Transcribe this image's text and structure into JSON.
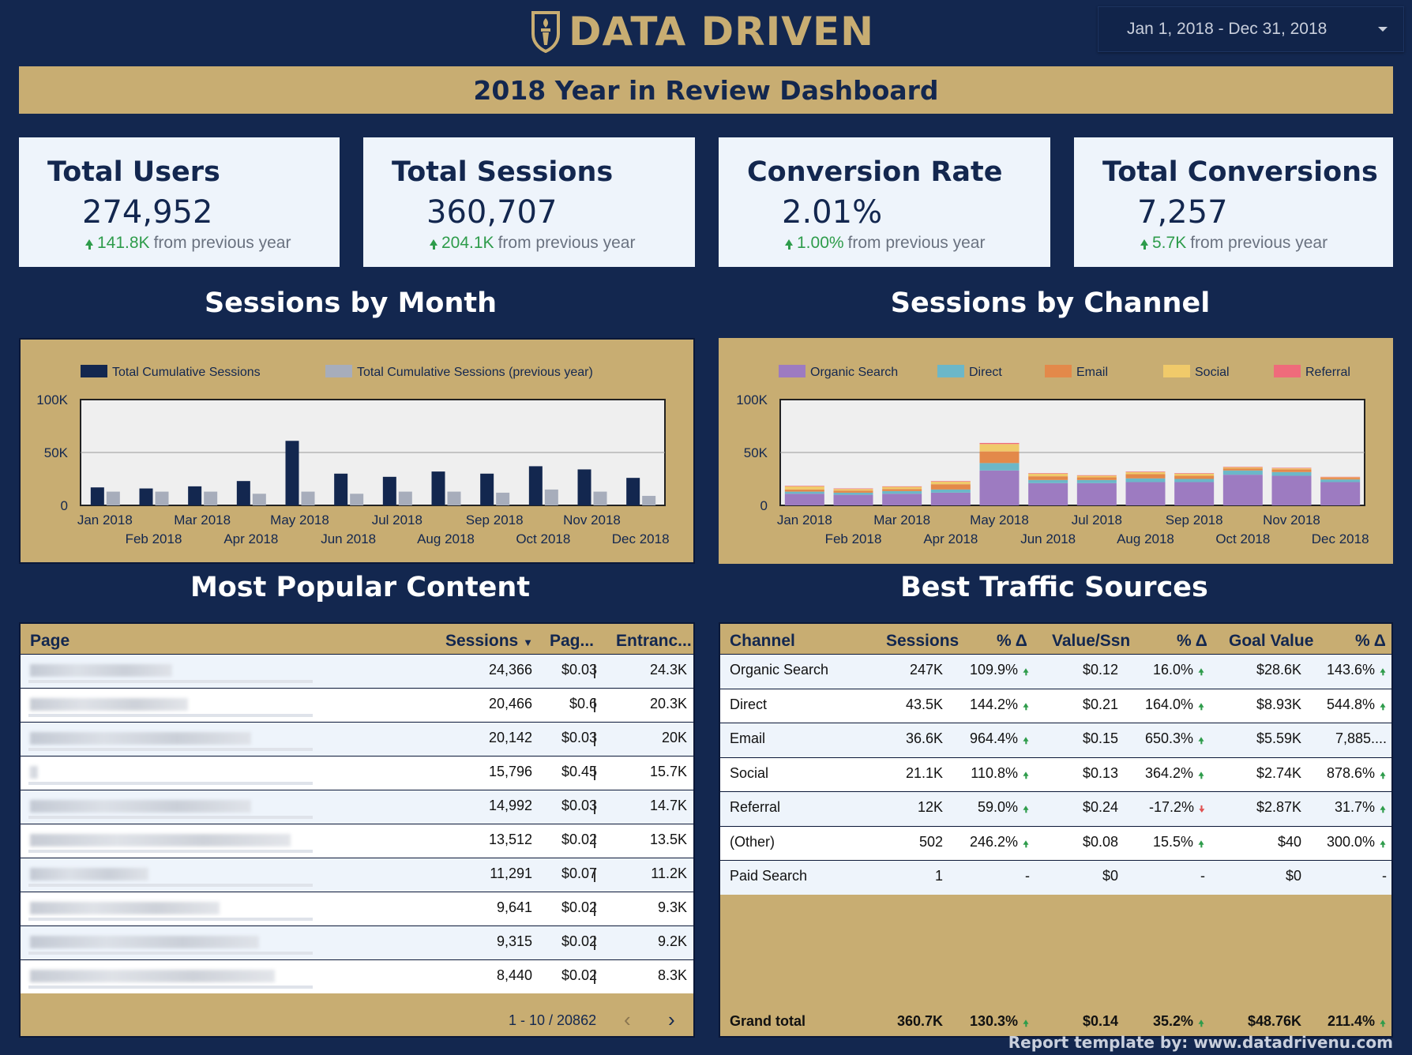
{
  "header": {
    "brand": "DATA DRIVEN",
    "logo_icon": "torch-shield-icon",
    "date_range": "Jan 1, 2018 - Dec 31, 2018",
    "banner_title": "2018 Year in Review Dashboard"
  },
  "kpis": [
    {
      "title": "Total Users",
      "value": "274,952",
      "delta": "141.8K",
      "delta_text": "from previous year"
    },
    {
      "title": "Total Sessions",
      "value": "360,707",
      "delta": "204.1K",
      "delta_text": "from previous year"
    },
    {
      "title": "Conversion Rate",
      "value": "2.01%",
      "delta": "1.00%",
      "delta_text": "from previous year"
    },
    {
      "title": "Total Conversions",
      "value": "7,257",
      "delta": "5.7K",
      "delta_text": "from previous year"
    }
  ],
  "sections": {
    "sessions_by_month": "Sessions by Month",
    "sessions_by_channel": "Sessions by Channel",
    "popular_content": "Most Popular Content",
    "traffic_sources": "Best Traffic Sources"
  },
  "colors": {
    "navy": "#13274f",
    "gold": "#c8ad72",
    "prev_year": "#a7adbb",
    "organic": "#9d7bc1",
    "direct": "#6cb7c8",
    "email": "#e3894a",
    "social": "#f0ca6a",
    "referral": "#ef6b7b",
    "up": "#2e9c4b",
    "down": "#e05050"
  },
  "chart_data": [
    {
      "type": "bar",
      "categories": [
        "Jan 2018",
        "Feb 2018",
        "Mar 2018",
        "Apr 2018",
        "May 2018",
        "Jun 2018",
        "Jul 2018",
        "Aug 2018",
        "Sep 2018",
        "Oct 2018",
        "Nov 2018",
        "Dec 2018"
      ],
      "series": [
        {
          "name": "Total Cumulative Sessions",
          "values": [
            17000,
            16000,
            18000,
            23000,
            61000,
            30000,
            27000,
            32000,
            30000,
            37000,
            34000,
            26000
          ]
        },
        {
          "name": "Total Cumulative Sessions (previous year)",
          "values": [
            13000,
            13000,
            13000,
            11000,
            13000,
            11000,
            13000,
            13000,
            12000,
            15000,
            13000,
            9000
          ]
        }
      ],
      "y_ticks": [
        "0",
        "50K",
        "100K"
      ],
      "ylim": [
        0,
        100000
      ],
      "legend": "top-left",
      "grid": true
    },
    {
      "type": "bar",
      "stacked": true,
      "categories": [
        "Jan 2018",
        "Feb 2018",
        "Mar 2018",
        "Apr 2018",
        "May 2018",
        "Jun 2018",
        "Jul 2018",
        "Aug 2018",
        "Sep 2018",
        "Oct 2018",
        "Nov 2018",
        "Dec 2018"
      ],
      "series": [
        {
          "name": "Organic Search",
          "values": [
            11000,
            10000,
            11000,
            12000,
            33000,
            21000,
            21000,
            22000,
            22000,
            29000,
            28000,
            22000
          ]
        },
        {
          "name": "Direct",
          "values": [
            2000,
            2000,
            2500,
            3000,
            7000,
            3000,
            3000,
            3500,
            3000,
            4000,
            3500,
            2500
          ]
        },
        {
          "name": "Email",
          "values": [
            2000,
            2000,
            2000,
            5000,
            11000,
            3500,
            2500,
            4000,
            3000,
            2000,
            2500,
            1500
          ]
        },
        {
          "name": "Social",
          "values": [
            3000,
            1500,
            2000,
            2500,
            7000,
            2500,
            1500,
            2000,
            2000,
            1000,
            1000,
            500
          ]
        },
        {
          "name": "Referral",
          "values": [
            500,
            500,
            500,
            500,
            1000,
            500,
            500,
            500,
            500,
            500,
            500,
            500
          ]
        }
      ],
      "y_ticks": [
        "0",
        "50K",
        "100K"
      ],
      "ylim": [
        0,
        100000
      ],
      "legend": "top-left",
      "grid": true
    }
  ],
  "content_table": {
    "headers": [
      "Page",
      "Sessions",
      "Pag...",
      "Entranc..."
    ],
    "rows": [
      {
        "sessions": "24,366",
        "pv": "$0.03",
        "ent": "24.3K"
      },
      {
        "sessions": "20,466",
        "pv": "$0.6",
        "ent": "20.3K"
      },
      {
        "sessions": "20,142",
        "pv": "$0.03",
        "ent": "20K"
      },
      {
        "sessions": "15,796",
        "pv": "$0.45",
        "ent": "15.7K"
      },
      {
        "sessions": "14,992",
        "pv": "$0.03",
        "ent": "14.7K"
      },
      {
        "sessions": "13,512",
        "pv": "$0.02",
        "ent": "13.5K"
      },
      {
        "sessions": "11,291",
        "pv": "$0.07",
        "ent": "11.2K"
      },
      {
        "sessions": "9,641",
        "pv": "$0.02",
        "ent": "9.3K"
      },
      {
        "sessions": "9,315",
        "pv": "$0.02",
        "ent": "9.2K"
      },
      {
        "sessions": "8,440",
        "pv": "$0.02",
        "ent": "8.3K"
      }
    ],
    "pager": "1 - 10 / 20862"
  },
  "traffic_table": {
    "headers": [
      "Channel",
      "Sessions",
      "% Δ",
      "Value/Ssn",
      "% Δ",
      "Goal Value",
      "% Δ"
    ],
    "rows": [
      {
        "ch": "Organic Search",
        "s": "247K",
        "d1": "109.9%",
        "u1": "up",
        "v": "$0.12",
        "d2": "16.0%",
        "u2": "up",
        "g": "$28.6K",
        "d3": "143.6%",
        "u3": "up"
      },
      {
        "ch": "Direct",
        "s": "43.5K",
        "d1": "144.2%",
        "u1": "up",
        "v": "$0.21",
        "d2": "164.0%",
        "u2": "up",
        "g": "$8.93K",
        "d3": "544.8%",
        "u3": "up"
      },
      {
        "ch": "Email",
        "s": "36.6K",
        "d1": "964.4%",
        "u1": "up",
        "v": "$0.15",
        "d2": "650.3%",
        "u2": "up",
        "g": "$5.59K",
        "d3": "7,885....",
        "u3": ""
      },
      {
        "ch": "Social",
        "s": "21.1K",
        "d1": "110.8%",
        "u1": "up",
        "v": "$0.13",
        "d2": "364.2%",
        "u2": "up",
        "g": "$2.74K",
        "d3": "878.6%",
        "u3": "up"
      },
      {
        "ch": "Referral",
        "s": "12K",
        "d1": "59.0%",
        "u1": "up",
        "v": "$0.24",
        "d2": "-17.2%",
        "u2": "down",
        "g": "$2.87K",
        "d3": "31.7%",
        "u3": "up"
      },
      {
        "ch": "(Other)",
        "s": "502",
        "d1": "246.2%",
        "u1": "up",
        "v": "$0.08",
        "d2": "15.5%",
        "u2": "up",
        "g": "$40",
        "d3": "300.0%",
        "u3": "up"
      },
      {
        "ch": "Paid Search",
        "s": "1",
        "d1": "-",
        "u1": "",
        "v": "$0",
        "d2": "-",
        "u2": "",
        "g": "$0",
        "d3": "-",
        "u3": ""
      }
    ],
    "total": {
      "ch": "Grand total",
      "s": "360.7K",
      "d1": "130.3%",
      "v": "$0.14",
      "d2": "35.2%",
      "g": "$48.76K",
      "d3": "211.4%"
    }
  },
  "footer": "Report template by: www.datadrivenu.com"
}
